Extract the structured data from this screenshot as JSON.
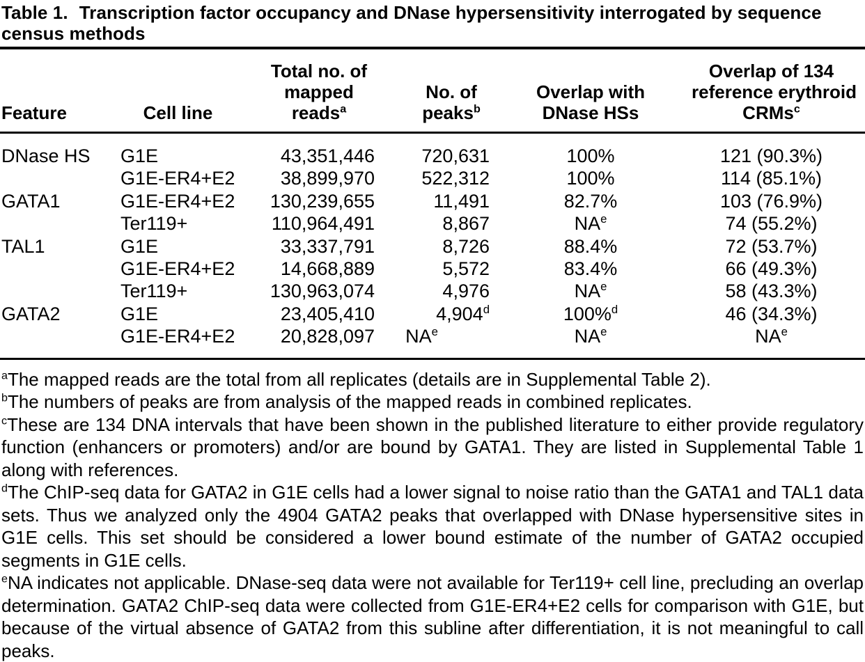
{
  "title": {
    "label": "Table 1.",
    "text": "Transcription factor occupancy and DNase hypersensitivity interrogated by sequence census methods"
  },
  "table": {
    "columns": [
      {
        "id": "feature",
        "lines": [
          "Feature"
        ]
      },
      {
        "id": "cell-line",
        "lines": [
          "Cell line"
        ]
      },
      {
        "id": "mapped-reads",
        "lines": [
          "Total no. of",
          "mapped",
          "reads^a"
        ]
      },
      {
        "id": "peaks",
        "lines": [
          "No. of",
          "peaks^b"
        ]
      },
      {
        "id": "dnase-overlap",
        "lines": [
          "Overlap with",
          "DNase HSs"
        ]
      },
      {
        "id": "crm-overlap",
        "lines": [
          "Overlap of 134",
          "reference erythroid",
          "CRMs^c"
        ]
      }
    ],
    "rows": [
      [
        "DNase HS",
        "G1E",
        "43,351,446",
        "720,631",
        "100%",
        "121 (90.3%)"
      ],
      [
        "",
        "G1E-ER4+E2",
        "38,899,970",
        "522,312",
        "100%",
        "114 (85.1%)"
      ],
      [
        "GATA1",
        "G1E-ER4+E2",
        "130,239,655",
        "11,491",
        "82.7%",
        "103 (76.9%)"
      ],
      [
        "",
        "Ter119+",
        "110,964,491",
        "8,867",
        "NA^e",
        "74 (55.2%)"
      ],
      [
        "TAL1",
        "G1E",
        "33,337,791",
        "8,726",
        "88.4%",
        "72 (53.7%)"
      ],
      [
        "",
        "G1E-ER4+E2",
        "14,668,889",
        "5,572",
        "83.4%",
        "66 (49.3%)"
      ],
      [
        "",
        "Ter119+",
        "130,963,074",
        "4,976",
        "NA^e",
        "58 (43.3%)"
      ],
      [
        "GATA2",
        "G1E",
        "23,405,410",
        "4,904^d",
        "100%^d",
        "46 (34.3%)"
      ],
      [
        "",
        "G1E-ER4+E2",
        "20,828,097",
        "NA^e",
        "NA^e",
        "NA^e"
      ]
    ]
  },
  "footnotes": [
    {
      "marker": "a",
      "text": "The mapped reads are the total from all replicates (details are in Supplemental Table 2)."
    },
    {
      "marker": "b",
      "text": "The numbers of peaks are from analysis of the mapped reads in combined replicates."
    },
    {
      "marker": "c",
      "text": "These are 134 DNA intervals that have been shown in the published literature to either provide regulatory function (enhancers or promoters) and/or are bound by GATA1. They are listed in Supplemental Table 1 along with references."
    },
    {
      "marker": "d",
      "text": "The ChIP-seq data for GATA2 in G1E cells had a lower signal to noise ratio than the GATA1 and TAL1 data sets. Thus we analyzed only the 4904 GATA2 peaks that overlapped with DNase hypersensitive sites in G1E cells. This set should be considered a lower bound estimate of the number of GATA2 occupied segments in G1E cells."
    },
    {
      "marker": "e",
      "text": "NA indicates not applicable. DNase-seq data were not available for Ter119+ cell line, precluding an overlap determination. GATA2 ChIP-seq data were collected from G1E-ER4+E2 cells for comparison with G1E, but because of the virtual absence of GATA2 from this subline after differentiation, it is not meaningful to call peaks."
    }
  ],
  "colors": {
    "text": "#000000",
    "background": "#ffffff",
    "rule": "#000000"
  }
}
